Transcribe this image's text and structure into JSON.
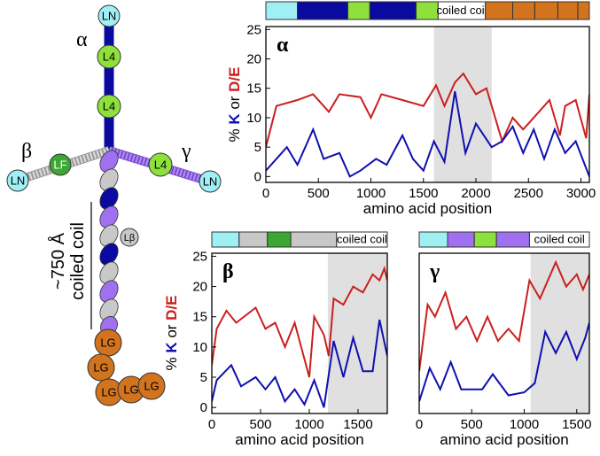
{
  "diagram": {
    "alpha": "α",
    "beta": "β",
    "gamma": "γ",
    "ln": [
      "LN",
      "LN",
      "LN"
    ],
    "l4": [
      "L4",
      "L4",
      "L4"
    ],
    "lf": "LF",
    "lbeta": "Lβ",
    "lg": [
      "LG",
      "LG",
      "LG",
      "LG",
      "LG"
    ],
    "length": "~750 Å",
    "coil": "coiled coil"
  },
  "chart_data": [
    {
      "type": "line",
      "label": "α",
      "xlabel": "amino acid position",
      "ylabel_parts": [
        {
          "text": "% ",
          "color": "#000000"
        },
        {
          "text": "K",
          "color": "#1010b0"
        },
        {
          "text": " or ",
          "color": "#000000"
        },
        {
          "text": "D/E",
          "color": "#cc1f1f"
        }
      ],
      "xlim": [
        0,
        3080
      ],
      "ylim": [
        -1,
        25.5
      ],
      "xticks": [
        0,
        500,
        1000,
        1500,
        2000,
        2500,
        3000
      ],
      "yticks": [
        0,
        5,
        10,
        15,
        20,
        25
      ],
      "shade": [
        1600,
        2150
      ],
      "shade_color": "#e0e0e0",
      "domains": [
        {
          "start": 0,
          "end": 300,
          "color": "#9ff0f5"
        },
        {
          "start": 300,
          "end": 780,
          "color": "#0a0aa0"
        },
        {
          "start": 780,
          "end": 990,
          "color": "#8ee03c"
        },
        {
          "start": 990,
          "end": 1430,
          "color": "#0a0aa0"
        },
        {
          "start": 1430,
          "end": 1640,
          "color": "#8ee03c"
        },
        {
          "start": 1640,
          "end": 2090,
          "color": "#ffffff",
          "label": "coiled coil"
        },
        {
          "start": 2090,
          "end": 2350,
          "color": "#d2731e"
        },
        {
          "start": 2350,
          "end": 2560,
          "color": "#d2731e"
        },
        {
          "start": 2560,
          "end": 2780,
          "color": "#d2731e"
        },
        {
          "start": 2780,
          "end": 2970,
          "color": "#d2731e"
        },
        {
          "start": 2970,
          "end": 3080,
          "color": "#d2731e"
        }
      ],
      "series": [
        {
          "color": "#cc1f1f",
          "x": [
            0,
            100,
            300,
            450,
            600,
            700,
            900,
            1000,
            1100,
            1300,
            1500,
            1620,
            1700,
            1800,
            1880,
            2000,
            2100,
            2200,
            2250,
            2350,
            2450,
            2600,
            2700,
            2800,
            2850,
            2950,
            3050,
            3080
          ],
          "values": [
            5,
            12,
            13,
            14,
            11,
            14,
            13.5,
            10,
            14,
            13,
            12,
            15.5,
            12,
            16,
            17.5,
            14,
            15,
            9,
            6,
            10,
            8,
            11,
            13,
            7,
            12,
            13,
            6.5,
            14
          ]
        },
        {
          "color": "#1010b0",
          "x": [
            0,
            100,
            200,
            300,
            450,
            550,
            700,
            800,
            900,
            1050,
            1150,
            1300,
            1400,
            1500,
            1600,
            1700,
            1800,
            1900,
            2000,
            2150,
            2250,
            2350,
            2450,
            2550,
            2650,
            2750,
            2850,
            2950,
            3080
          ],
          "values": [
            1,
            3,
            5,
            2,
            8,
            3,
            4,
            0,
            1,
            3,
            2,
            7,
            3,
            1,
            6,
            2.5,
            14.5,
            4,
            9,
            5,
            6,
            8.5,
            4,
            8,
            3,
            8,
            4,
            6,
            0
          ]
        }
      ]
    },
    {
      "type": "line",
      "label": "β",
      "xlabel": "amino acid position",
      "ylabel_parts": [
        {
          "text": "% ",
          "color": "#000000"
        },
        {
          "text": "K",
          "color": "#1010b0"
        },
        {
          "text": " or ",
          "color": "#000000"
        },
        {
          "text": "D/E",
          "color": "#cc1f1f"
        }
      ],
      "xlim": [
        0,
        1800
      ],
      "ylim": [
        -1,
        25.5
      ],
      "xticks": [
        0,
        500,
        1000,
        1500
      ],
      "yticks": [
        0,
        5,
        10,
        15,
        20,
        25
      ],
      "shade": [
        1190,
        1800
      ],
      "shade_color": "#e0e0e0",
      "domains": [
        {
          "start": 0,
          "end": 280,
          "color": "#9ff0f5"
        },
        {
          "start": 280,
          "end": 570,
          "color": "#c8c8c8"
        },
        {
          "start": 570,
          "end": 810,
          "color": "#3aa832"
        },
        {
          "start": 810,
          "end": 1280,
          "color": "#c8c8c8"
        },
        {
          "start": 1280,
          "end": 1800,
          "color": "#ffffff",
          "label": "coiled coil"
        }
      ],
      "series": [
        {
          "color": "#cc1f1f",
          "x": [
            0,
            50,
            150,
            250,
            450,
            550,
            650,
            750,
            850,
            1000,
            1050,
            1150,
            1200,
            1250,
            1350,
            1450,
            1550,
            1650,
            1720,
            1770,
            1800
          ],
          "values": [
            7,
            13,
            16,
            14,
            16.5,
            13,
            14,
            10,
            14,
            5,
            15,
            12,
            8.5,
            18,
            17,
            20,
            19,
            22,
            21,
            23,
            21
          ]
        },
        {
          "color": "#1010b0",
          "x": [
            0,
            50,
            200,
            300,
            450,
            550,
            650,
            750,
            850,
            950,
            1050,
            1150,
            1250,
            1350,
            1450,
            1550,
            1650,
            1720,
            1800
          ],
          "values": [
            1,
            4.5,
            7,
            3.5,
            5,
            3,
            5,
            1,
            3,
            0.5,
            4.5,
            0,
            11,
            5,
            11.5,
            6,
            6,
            14.5,
            8.5
          ]
        }
      ]
    },
    {
      "type": "line",
      "label": "γ",
      "xlabel": "amino acid position",
      "xlim": [
        0,
        1620
      ],
      "ylim": [
        -1,
        25.5
      ],
      "xticks": [
        0,
        500,
        1000,
        1500
      ],
      "shade": [
        1060,
        1620
      ],
      "shade_color": "#e0e0e0",
      "domains": [
        {
          "start": 0,
          "end": 270,
          "color": "#9ff0f5"
        },
        {
          "start": 270,
          "end": 525,
          "color": "#a070f0"
        },
        {
          "start": 525,
          "end": 735,
          "color": "#8ee03c"
        },
        {
          "start": 735,
          "end": 1050,
          "color": "#a070f0"
        },
        {
          "start": 1050,
          "end": 1620,
          "color": "#ffffff",
          "label": "coiled coil"
        }
      ],
      "series": [
        {
          "color": "#cc1f1f",
          "x": [
            0,
            80,
            150,
            250,
            350,
            450,
            550,
            650,
            750,
            850,
            950,
            1050,
            1150,
            1300,
            1400,
            1500,
            1560,
            1620
          ],
          "values": [
            6,
            17,
            15,
            19,
            13,
            15,
            11,
            15,
            11,
            13,
            11,
            21,
            18,
            24,
            20,
            22,
            19.5,
            22
          ]
        },
        {
          "color": "#1010b0",
          "x": [
            0,
            100,
            200,
            300,
            400,
            600,
            700,
            850,
            1000,
            1100,
            1200,
            1300,
            1400,
            1500,
            1580,
            1620
          ],
          "values": [
            1,
            6.5,
            3,
            7.5,
            3,
            3,
            5.5,
            2,
            2.5,
            4,
            12.5,
            9,
            12.5,
            8,
            11.5,
            14
          ]
        }
      ]
    }
  ]
}
